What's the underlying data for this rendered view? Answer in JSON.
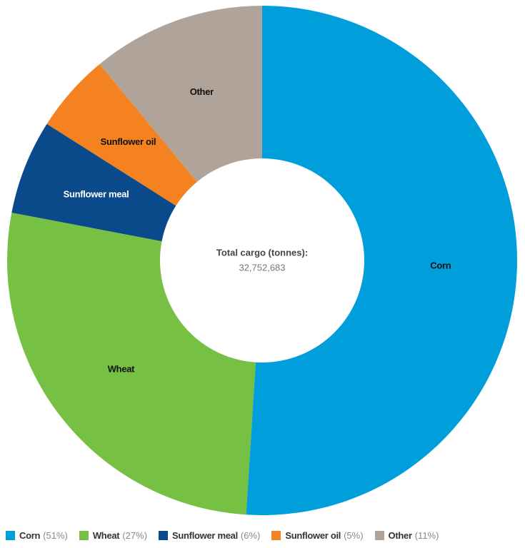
{
  "chart_data": {
    "type": "donut",
    "categories": [
      "Corn",
      "Wheat",
      "Sunflower meal",
      "Sunflower oil",
      "Other"
    ],
    "values": [
      51,
      27,
      6,
      5,
      11
    ],
    "value_labels": [
      "(51%)",
      "(27%)",
      "(6%)",
      "(5%)",
      "(11%)"
    ],
    "colors": [
      "#009fdb",
      "#76c043",
      "#0b4a8a",
      "#f58220",
      "#b0a49a"
    ],
    "center_title": "Total cargo (tonnes):",
    "center_value": "32,752,683"
  }
}
